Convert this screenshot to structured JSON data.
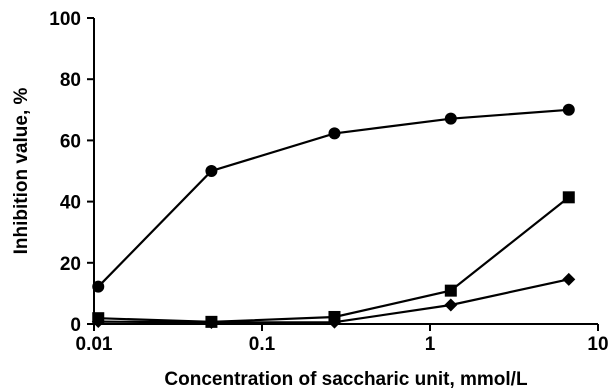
{
  "chart_data": {
    "type": "line",
    "xscale": "log",
    "xlabel": "Concentration of saccharic unit, mmol/L",
    "ylabel": "Inhibition value, %",
    "xlim": [
      0.01,
      10
    ],
    "ylim": [
      0,
      100
    ],
    "xticks": [
      0.01,
      0.1,
      1,
      10
    ],
    "xtick_labels": [
      "0.01",
      "0.1",
      "1",
      "10"
    ],
    "yticks": [
      0,
      20,
      40,
      60,
      80,
      100
    ],
    "ytick_labels": [
      "0",
      "20",
      "40",
      "60",
      "80",
      "100"
    ],
    "grid": false,
    "series": [
      {
        "marker": "circle",
        "x": [
          0.0106,
          0.05,
          0.27,
          1.33,
          6.7
        ],
        "y": [
          12.2,
          50.0,
          62.3,
          67.1,
          70.0
        ]
      },
      {
        "marker": "square",
        "x": [
          0.0106,
          0.05,
          0.27,
          1.33,
          6.7
        ],
        "y": [
          1.9,
          0.7,
          2.3,
          10.9,
          41.4
        ]
      },
      {
        "marker": "diamond",
        "x": [
          0.0106,
          0.05,
          0.27,
          1.33,
          6.7
        ],
        "y": [
          0.8,
          0.5,
          0.6,
          6.2,
          14.6
        ]
      }
    ]
  }
}
